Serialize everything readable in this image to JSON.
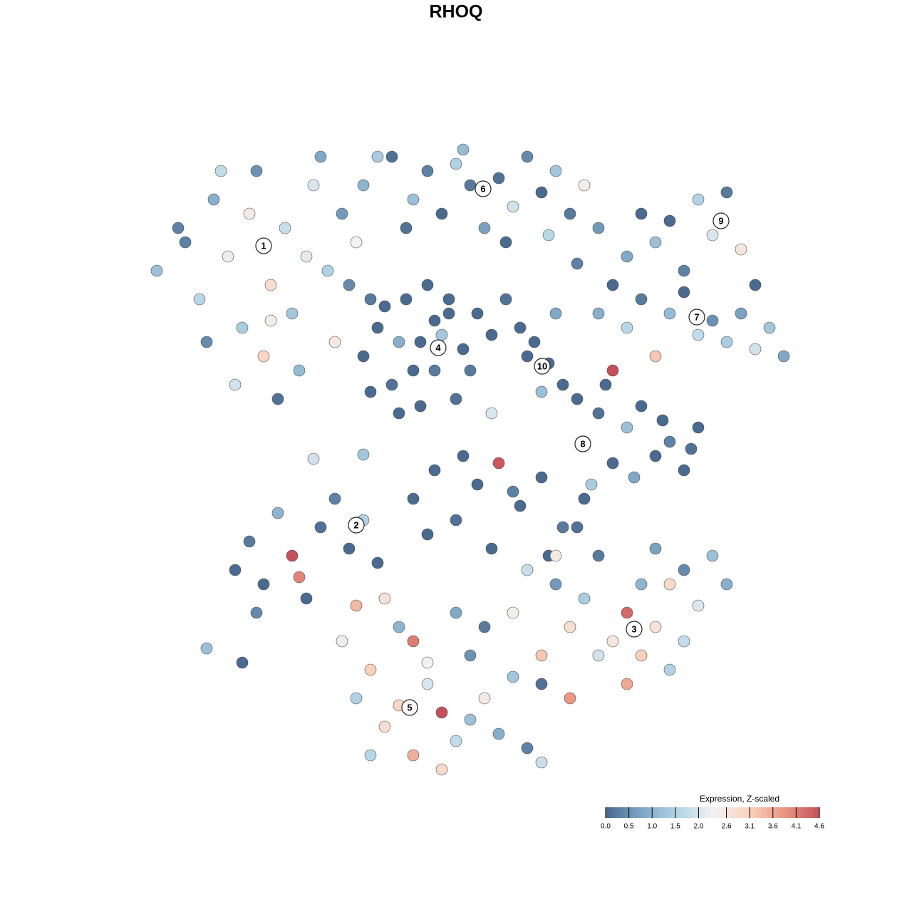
{
  "chart_data": {
    "type": "scatter",
    "title": "RHOQ",
    "xlim": [
      0,
      93
    ],
    "ylim": [
      0,
      92
    ],
    "x": [
      2,
      5,
      8,
      10,
      12,
      14,
      16,
      18,
      20,
      22,
      24,
      26,
      28,
      30,
      32,
      9,
      13,
      17,
      21,
      25,
      27,
      31,
      15,
      19,
      11,
      6,
      23,
      29,
      33,
      18,
      35,
      38,
      40,
      42,
      44,
      46,
      48,
      50,
      52,
      54,
      56,
      58,
      60,
      62,
      64,
      37,
      45,
      51,
      57,
      61,
      31,
      33,
      35,
      37,
      39,
      41,
      43,
      45,
      32,
      36,
      40,
      44,
      38,
      42,
      34,
      46,
      39,
      43,
      36,
      41,
      47,
      49,
      51,
      53,
      55,
      57,
      59,
      56,
      54,
      58,
      68,
      70,
      72,
      74,
      76,
      78,
      80,
      82,
      84,
      86,
      64,
      66,
      68,
      70,
      72,
      74,
      76,
      78,
      80,
      82,
      84,
      86,
      88,
      90,
      66,
      62,
      64,
      66,
      68,
      70,
      72,
      74,
      76,
      78,
      63,
      65,
      69,
      73,
      77,
      61,
      38,
      41,
      44,
      47,
      50,
      53,
      56,
      59,
      62,
      40,
      45,
      49,
      52,
      57,
      61,
      13,
      15,
      17,
      19,
      21,
      23,
      25,
      27,
      29,
      31,
      33,
      16,
      22,
      9,
      14,
      28,
      30,
      32,
      34,
      36,
      38,
      40,
      42,
      44,
      46,
      48,
      50,
      52,
      54,
      56,
      30,
      34,
      38,
      42,
      46,
      36,
      40,
      44,
      32,
      48,
      52,
      54,
      56,
      58,
      60,
      62,
      64,
      66,
      68,
      70,
      72,
      74,
      76,
      78,
      80,
      82,
      60,
      64,
      68,
      74,
      76,
      70,
      58,
      72,
      56,
      24,
      31,
      49
    ],
    "y": [
      72,
      78,
      68,
      82,
      74,
      64,
      86,
      70,
      78,
      58,
      84,
      72,
      80,
      76,
      68,
      62,
      56,
      60,
      66,
      88,
      62,
      84,
      80,
      54,
      86,
      76,
      74,
      70,
      88,
      65,
      88,
      82,
      86,
      80,
      87,
      84,
      78,
      85,
      81,
      88,
      83,
      86,
      80,
      84,
      78,
      78,
      89,
      76,
      77,
      73,
      60,
      64,
      56,
      68,
      62,
      58,
      66,
      61,
      55,
      52,
      70,
      54,
      58,
      63,
      67,
      58,
      53,
      68,
      62,
      65,
      66,
      63,
      68,
      64,
      62,
      59,
      56,
      55,
      60,
      66,
      74,
      80,
      76,
      79,
      72,
      82,
      77,
      83,
      75,
      70,
      66,
      70,
      64,
      68,
      60,
      66,
      69,
      63,
      65,
      62,
      66,
      61,
      64,
      60,
      58,
      48,
      52,
      45,
      50,
      53,
      46,
      48,
      44,
      50,
      42,
      56,
      43,
      51,
      47,
      54,
      40,
      44,
      37,
      42,
      45,
      39,
      43,
      36,
      40,
      35,
      46,
      33,
      41,
      32,
      36,
      30,
      34,
      28,
      38,
      32,
      26,
      36,
      40,
      33,
      37,
      31,
      24,
      29,
      19,
      17,
      20,
      12,
      16,
      8,
      22,
      4,
      14,
      10,
      6,
      18,
      12,
      7,
      15,
      5,
      3,
      25,
      26,
      20,
      2,
      9,
      11,
      17,
      24,
      4,
      22,
      24,
      30,
      18,
      28,
      22,
      26,
      32,
      20,
      14,
      28,
      22,
      16,
      30,
      25,
      32,
      28,
      12,
      18,
      24,
      28,
      20,
      18,
      32,
      33,
      14,
      45.6,
      46.2,
      52
    ],
    "values": [
      1.2,
      0.3,
      1.6,
      0.9,
      2.2,
      1.4,
      0.5,
      2.8,
      1.8,
      1.1,
      2.0,
      1.5,
      0.6,
      2.3,
      0.2,
      0.4,
      1.9,
      3.0,
      1.3,
      0.8,
      2.6,
      1.0,
      2.5,
      0.1,
      1.7,
      0.3,
      2.1,
      0.4,
      1.4,
      2.4,
      0.1,
      1.2,
      0.3,
      0,
      1.5,
      0.2,
      0.7,
      0.1,
      1.9,
      0.4,
      0,
      1.3,
      0.2,
      2.4,
      0.6,
      0.1,
      1.1,
      0,
      1.6,
      0.3,
      0,
      0,
      0.1,
      0,
      0,
      0.2,
      0,
      0,
      0,
      0,
      0,
      0.1,
      0,
      1.3,
      0,
      0.2,
      0,
      0,
      0.9,
      0,
      0,
      0,
      0.1,
      0,
      0,
      0,
      0,
      1.2,
      0,
      0.8,
      0.8,
      0,
      1.2,
      0,
      0.3,
      1.5,
      2.0,
      0.2,
      2.6,
      0,
      0.9,
      0,
      1.6,
      0.2,
      3.2,
      1.1,
      0,
      1.7,
      0.5,
      1.4,
      0.7,
      1.9,
      1.3,
      0.8,
      4.6,
      0,
      0.1,
      0,
      1.2,
      0,
      0,
      0.3,
      0,
      0,
      1.4,
      0,
      0.8,
      0,
      0.1,
      0,
      0,
      0,
      0.1,
      0,
      4.5,
      0,
      0,
      0.2,
      0,
      0,
      0,
      0,
      0.3,
      0,
      0.1,
      0,
      0.2,
      0,
      1.0,
      4.6,
      0,
      0.1,
      0.3,
      0,
      1.5,
      0,
      0.4,
      4.0,
      1.2,
      0,
      2.2,
      1.5,
      3.1,
      2.8,
      1.0,
      3.5,
      2.0,
      4.6,
      1.7,
      0.5,
      2.5,
      0.9,
      1.3,
      0.3,
      1.8,
      3.4,
      2.7,
      4.1,
      2.9,
      1.2,
      3.0,
      2.3,
      0.8,
      1.6,
      0.2,
      2.4,
      1.8,
      3.2,
      0.6,
      2.8,
      1.4,
      0.2,
      2.6,
      3.6,
      1.0,
      2.7,
      1.5,
      0.4,
      2.0,
      1.2,
      0.9,
      3.8,
      1.9,
      4.3,
      2.9,
      1.7,
      3.1,
      2.5,
      0.7,
      0.1,
      1.9,
      1.3,
      2.0
    ],
    "colors": [
      "#4a6a8f",
      "#7ea7c6",
      "#b3d4e5",
      "#f2f2f2",
      "#f9d3bf",
      "#e8957f",
      "#c4505a"
    ],
    "clusters": [
      {
        "label": "1",
        "x": 17,
        "y": 75.5
      },
      {
        "label": "2",
        "x": 30,
        "y": 36.3
      },
      {
        "label": "3",
        "x": 69,
        "y": 21.7
      },
      {
        "label": "4",
        "x": 41.5,
        "y": 61.2
      },
      {
        "label": "5",
        "x": 37.5,
        "y": 10.7
      },
      {
        "label": "6",
        "x": 47.8,
        "y": 83.5
      },
      {
        "label": "7",
        "x": 77.8,
        "y": 65.5
      },
      {
        "label": "8",
        "x": 61.8,
        "y": 47.7
      },
      {
        "label": "9",
        "x": 81.2,
        "y": 79
      },
      {
        "label": "10",
        "x": 56.1,
        "y": 58.6
      }
    ],
    "colorbar": {
      "title": "Expression, Z-scaled",
      "lim": [
        0,
        4.6
      ],
      "ticks": [
        {
          "value": 0,
          "label": "0.0"
        },
        0.5,
        {
          "value": 1,
          "label": "1.0"
        },
        1.5,
        {
          "value": 2,
          "label": "2.0"
        },
        2.6,
        3.1,
        3.6,
        4.1,
        4.6
      ]
    }
  }
}
